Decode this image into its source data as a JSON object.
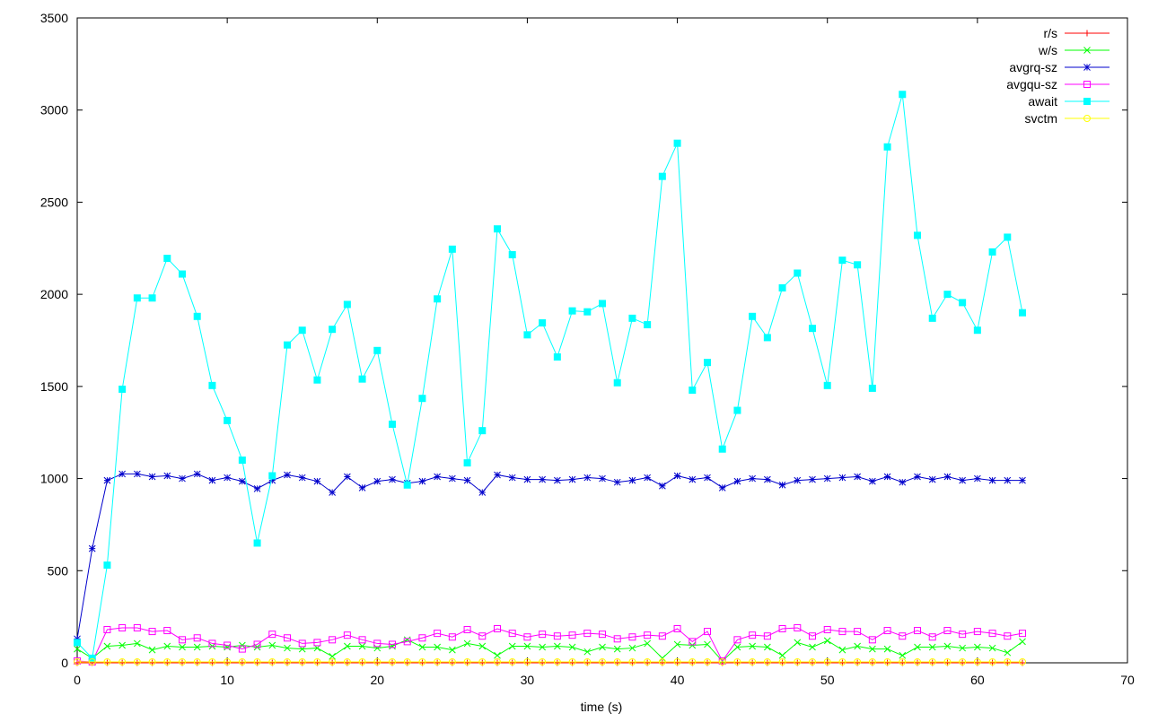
{
  "chart_data": {
    "type": "line",
    "xlabel": "time (s)",
    "ylabel": "",
    "xlim": [
      0,
      70
    ],
    "ylim": [
      0,
      3500
    ],
    "xticks": [
      0,
      10,
      20,
      30,
      40,
      50,
      60,
      70
    ],
    "yticks": [
      0,
      500,
      1000,
      1500,
      2000,
      2500,
      3000,
      3500
    ],
    "grid": false,
    "legend_position": "top-right",
    "x": [
      0,
      1,
      2,
      3,
      4,
      5,
      6,
      7,
      8,
      9,
      10,
      11,
      12,
      13,
      14,
      15,
      16,
      17,
      18,
      19,
      20,
      21,
      22,
      23,
      24,
      25,
      26,
      27,
      28,
      29,
      30,
      31,
      32,
      33,
      34,
      35,
      36,
      37,
      38,
      39,
      40,
      41,
      42,
      43,
      44,
      45,
      46,
      47,
      48,
      49,
      50,
      51,
      52,
      53,
      54,
      55,
      56,
      57,
      58,
      59,
      60,
      61,
      62,
      63
    ],
    "series": [
      {
        "name": "r/s",
        "color": "#ff0000",
        "marker": "plus",
        "values": [
          0,
          0,
          0,
          0,
          0,
          0,
          0,
          0,
          0,
          0,
          0,
          0,
          0,
          0,
          0,
          0,
          0,
          0,
          0,
          0,
          0,
          0,
          0,
          0,
          0,
          0,
          0,
          0,
          0,
          0,
          0,
          0,
          0,
          0,
          0,
          0,
          0,
          0,
          0,
          0,
          0,
          0,
          0,
          0,
          0,
          0,
          0,
          0,
          0,
          0,
          0,
          0,
          0,
          0,
          0,
          0,
          0,
          0,
          0,
          0,
          0,
          0,
          0,
          0
        ]
      },
      {
        "name": "w/s",
        "color": "#00ff00",
        "marker": "cross",
        "values": [
          75,
          25,
          90,
          95,
          105,
          70,
          90,
          85,
          85,
          90,
          85,
          95,
          85,
          95,
          80,
          75,
          80,
          35,
          90,
          90,
          80,
          90,
          125,
          85,
          85,
          70,
          105,
          90,
          40,
          90,
          90,
          85,
          90,
          85,
          60,
          85,
          75,
          80,
          105,
          25,
          100,
          95,
          100,
          10,
          85,
          90,
          85,
          40,
          110,
          85,
          120,
          70,
          90,
          75,
          75,
          40,
          85,
          85,
          90,
          80,
          85,
          80,
          55,
          115
        ]
      },
      {
        "name": "avgrq-sz",
        "color": "#0000cc",
        "marker": "star",
        "values": [
          130,
          620,
          990,
          1025,
          1025,
          1010,
          1015,
          1000,
          1025,
          990,
          1005,
          985,
          945,
          990,
          1020,
          1005,
          985,
          925,
          1010,
          950,
          985,
          995,
          975,
          985,
          1010,
          1000,
          990,
          925,
          1020,
          1005,
          995,
          995,
          990,
          995,
          1005,
          1000,
          980,
          990,
          1005,
          960,
          1015,
          995,
          1005,
          950,
          985,
          1000,
          995,
          965,
          990,
          995,
          1000,
          1005,
          1010,
          985,
          1010,
          980,
          1010,
          995,
          1010,
          990,
          1000,
          990,
          990,
          990
        ]
      },
      {
        "name": "avgqu-sz",
        "color": "#ff00ff",
        "marker": "square",
        "values": [
          10,
          5,
          180,
          190,
          190,
          170,
          175,
          125,
          135,
          105,
          95,
          75,
          100,
          155,
          135,
          105,
          110,
          125,
          150,
          125,
          105,
          100,
          115,
          135,
          160,
          140,
          180,
          145,
          185,
          160,
          140,
          155,
          145,
          150,
          160,
          155,
          130,
          140,
          150,
          145,
          185,
          115,
          170,
          10,
          125,
          150,
          145,
          185,
          190,
          145,
          180,
          170,
          170,
          125,
          175,
          145,
          175,
          140,
          175,
          155,
          170,
          160,
          145,
          160
        ]
      },
      {
        "name": "await",
        "color": "#00ffff",
        "marker": "filled-square",
        "values": [
          110,
          25,
          530,
          1485,
          1980,
          1980,
          2195,
          2110,
          1880,
          1505,
          1315,
          1100,
          650,
          1015,
          1725,
          1805,
          1535,
          1810,
          1945,
          1540,
          1695,
          1295,
          965,
          1435,
          1975,
          2245,
          1085,
          1260,
          2355,
          2215,
          1780,
          1845,
          1660,
          1910,
          1905,
          1950,
          1520,
          1870,
          1835,
          2640,
          2820,
          1480,
          1630,
          1160,
          1370,
          1880,
          1765,
          2035,
          2115,
          1815,
          1505,
          2185,
          2160,
          1490,
          2800,
          3085,
          2320,
          1870,
          2000,
          1955,
          1805,
          2230,
          2310,
          1900
        ]
      },
      {
        "name": "svctm",
        "color": "#ffff00",
        "marker": "circle",
        "values": [
          5,
          5,
          5,
          5,
          5,
          5,
          5,
          5,
          5,
          5,
          5,
          5,
          5,
          5,
          5,
          5,
          5,
          5,
          5,
          5,
          5,
          5,
          5,
          5,
          5,
          5,
          5,
          5,
          5,
          5,
          5,
          5,
          5,
          5,
          5,
          5,
          5,
          5,
          5,
          5,
          5,
          5,
          5,
          5,
          5,
          5,
          5,
          5,
          5,
          5,
          5,
          5,
          5,
          5,
          5,
          5,
          5,
          5,
          5,
          5,
          5,
          5,
          5,
          5
        ]
      }
    ]
  }
}
